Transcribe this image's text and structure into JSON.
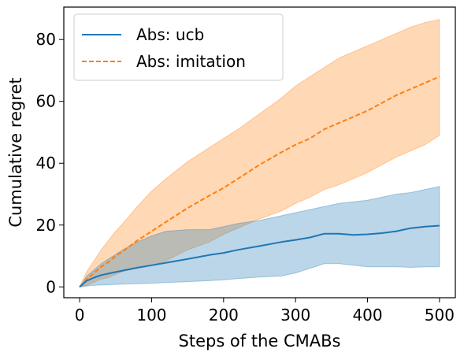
{
  "chart_data": {
    "type": "line",
    "title": "",
    "xlabel": "Steps of the CMABs",
    "ylabel": "Cumulative regret",
    "xlim": [
      -22,
      522
    ],
    "ylim": [
      -3.5,
      90.5
    ],
    "xticks": [
      0,
      100,
      200,
      300,
      400,
      500
    ],
    "yticks": [
      0,
      20,
      40,
      60,
      80
    ],
    "grid": false,
    "legend_position": "top-left",
    "series": [
      {
        "name": "Abs: ucb",
        "color": "#1f77b4",
        "style": "solid",
        "x": [
          0,
          10,
          20,
          30,
          40,
          50,
          60,
          80,
          100,
          120,
          150,
          180,
          200,
          220,
          250,
          280,
          300,
          320,
          340,
          360,
          380,
          400,
          420,
          440,
          460,
          480,
          500
        ],
        "y": [
          0,
          2,
          3,
          3.8,
          4.3,
          4.8,
          5.3,
          6.2,
          7,
          7.8,
          9,
          10.3,
          11,
          12,
          13.2,
          14.5,
          15.2,
          16,
          17.2,
          17.2,
          16.8,
          17,
          17.4,
          18,
          19,
          19.5,
          19.8
        ],
        "lower": [
          0,
          0.3,
          0.5,
          0.6,
          0.7,
          0.8,
          0.9,
          1.0,
          1.2,
          1.4,
          1.7,
          2.0,
          2.3,
          2.7,
          3.2,
          3.5,
          4.5,
          6,
          7.5,
          7.5,
          7,
          6.5,
          6.5,
          6.5,
          6.3,
          6.5,
          6.5
        ],
        "upper": [
          0,
          3.5,
          5.5,
          7.5,
          9,
          10.5,
          12,
          14.5,
          16.5,
          18,
          18.5,
          18.5,
          19.5,
          20.5,
          21.5,
          23,
          24,
          25,
          26,
          27,
          27.5,
          28,
          29,
          30,
          30.5,
          31.5,
          32.5
        ]
      },
      {
        "name": "Abs: imitation",
        "color": "#ff7f0e",
        "style": "dashed",
        "x": [
          0,
          10,
          20,
          30,
          40,
          50,
          60,
          80,
          100,
          120,
          150,
          180,
          200,
          220,
          250,
          280,
          300,
          320,
          340,
          360,
          380,
          400,
          420,
          440,
          460,
          480,
          500
        ],
        "y": [
          0,
          2.5,
          4.5,
          6.5,
          8,
          10,
          11.5,
          15,
          18,
          21,
          25.5,
          29.5,
          32,
          35,
          39.5,
          43.5,
          46,
          48,
          51,
          53,
          55,
          57,
          59.5,
          62,
          64,
          66,
          68
        ],
        "lower": [
          0,
          0.5,
          1.5,
          2.5,
          3,
          4,
          5,
          6,
          7,
          8.5,
          12,
          14.5,
          17,
          19,
          22,
          24.5,
          27,
          29,
          31.5,
          33,
          35,
          37,
          39.5,
          42,
          44,
          46,
          49
        ],
        "upper": [
          0,
          5,
          8.5,
          12,
          15,
          18,
          20.5,
          26,
          31,
          35,
          40.5,
          45,
          48,
          51,
          56,
          61,
          65,
          68,
          71,
          74,
          76,
          78,
          80,
          82,
          84,
          85.5,
          86.5
        ]
      }
    ]
  }
}
